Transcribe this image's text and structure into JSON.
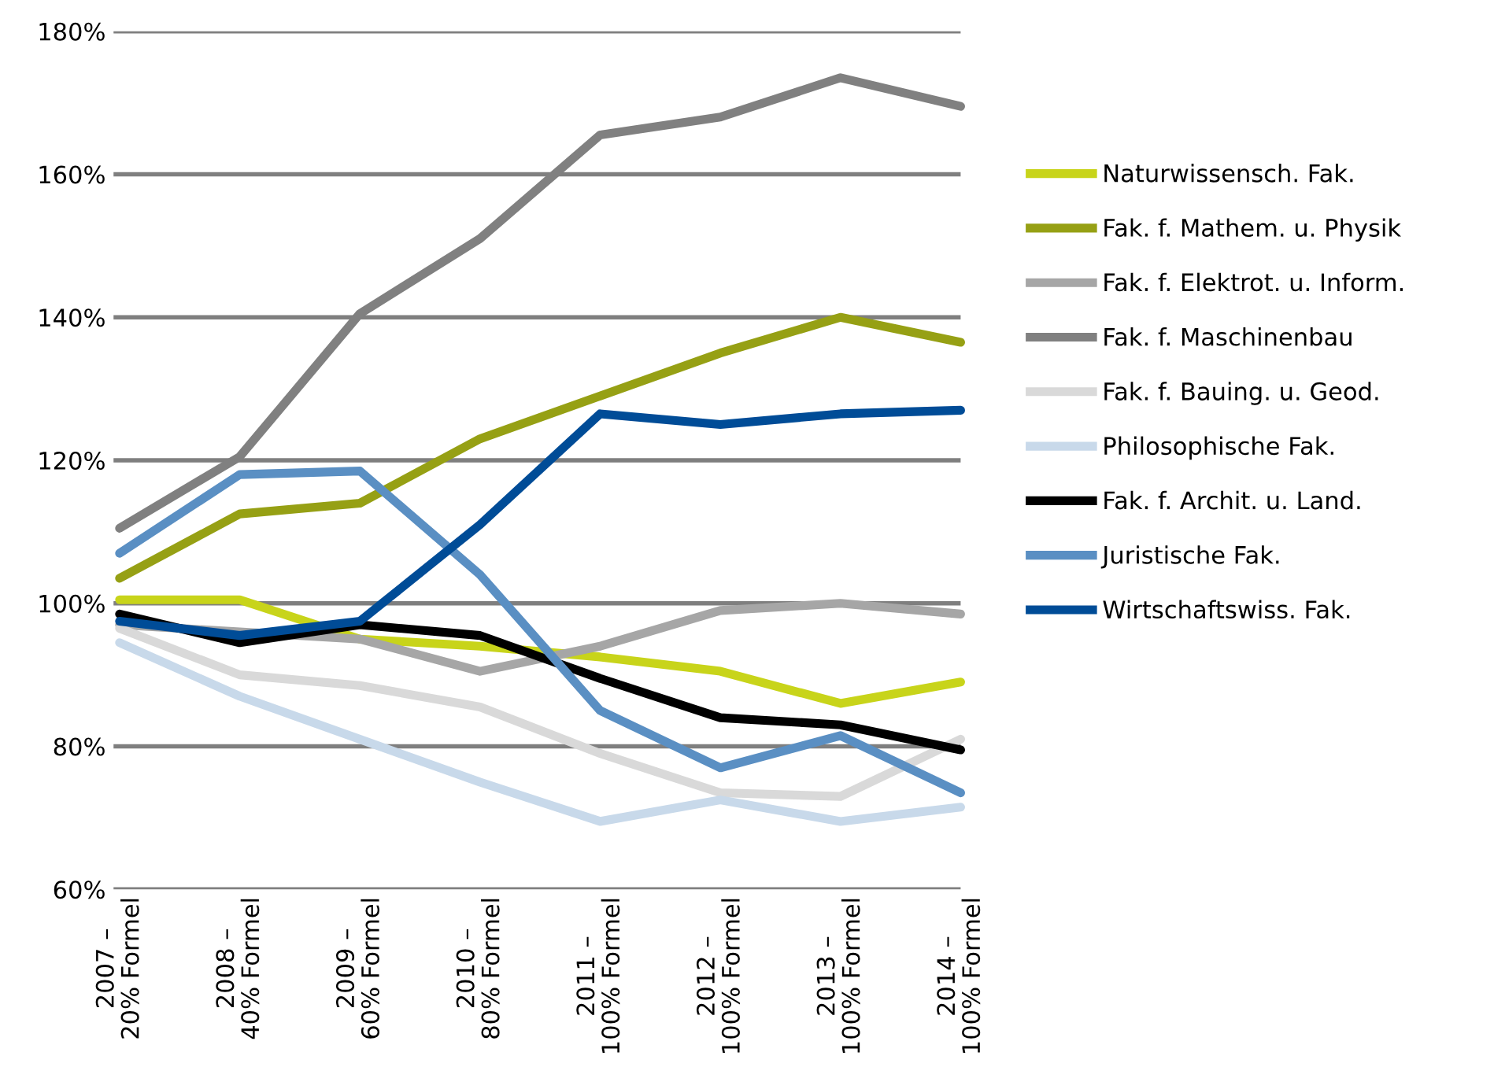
{
  "chart_data": {
    "type": "line",
    "categories": [
      "2007 –\n20% Formel",
      "2008 –\n40% Formel",
      "2009 –\n60% Formel",
      "2010 –\n80% Formel",
      "2011 –\n100% Formel",
      "2012 –\n100% Formel",
      "2013 –\n100% Formel",
      "2014 –\n100% Formel"
    ],
    "series": [
      {
        "name": "Naturwissensch. Fak.",
        "color": "#c8d41a",
        "values": [
          100.5,
          100.5,
          95,
          94,
          92.5,
          90.5,
          86,
          89
        ]
      },
      {
        "name": "Fak. f. Mathem. u. Physik",
        "color": "#96a014",
        "values": [
          103.5,
          112.5,
          114,
          123,
          129,
          135,
          140,
          136.5
        ]
      },
      {
        "name": "Fak. f. Elektrot. u. Inform.",
        "color": "#a6a6a6",
        "values": [
          97,
          96,
          95,
          90.5,
          94,
          99,
          100,
          98.5
        ]
      },
      {
        "name": "Fak. f. Maschinenbau",
        "color": "#808080",
        "values": [
          110.5,
          120.5,
          140.5,
          151,
          165.5,
          168,
          173.5,
          169.5
        ]
      },
      {
        "name": "Fak. f. Bauing. u. Geod.",
        "color": "#d9d9d9",
        "values": [
          96.5,
          90,
          88.5,
          85.5,
          79,
          73.5,
          73,
          81
        ]
      },
      {
        "name": "Philosophische Fak.",
        "color": "#c8d9ea",
        "values": [
          94.5,
          87,
          81,
          75,
          69.5,
          72.5,
          69.5,
          71.5
        ]
      },
      {
        "name": "Fak. f. Archit. u. Land.",
        "color": "#000000",
        "values": [
          98.5,
          94.5,
          97,
          95.5,
          89.5,
          84,
          83,
          79.5
        ]
      },
      {
        "name": "Juristische Fak.",
        "color": "#5a8fc3",
        "values": [
          107,
          118,
          118.5,
          104,
          85,
          77,
          81.5,
          73.5
        ]
      },
      {
        "name": "Wirtschaftswiss. Fak.",
        "color": "#004c97",
        "values": [
          97.5,
          95.5,
          97.5,
          111,
          126.5,
          125,
          126.5,
          127
        ]
      }
    ],
    "ylim": [
      60,
      180
    ],
    "yticks": [
      {
        "value": 60,
        "label": "60%"
      },
      {
        "value": 80,
        "label": "80%"
      },
      {
        "value": 100,
        "label": "100%"
      },
      {
        "value": 120,
        "label": "120%"
      },
      {
        "value": 140,
        "label": "140%"
      },
      {
        "value": 160,
        "label": "160%"
      },
      {
        "value": 180,
        "label": "180%"
      }
    ],
    "grid": "y",
    "legend": "right",
    "marker": "none",
    "line_style": "solid"
  }
}
